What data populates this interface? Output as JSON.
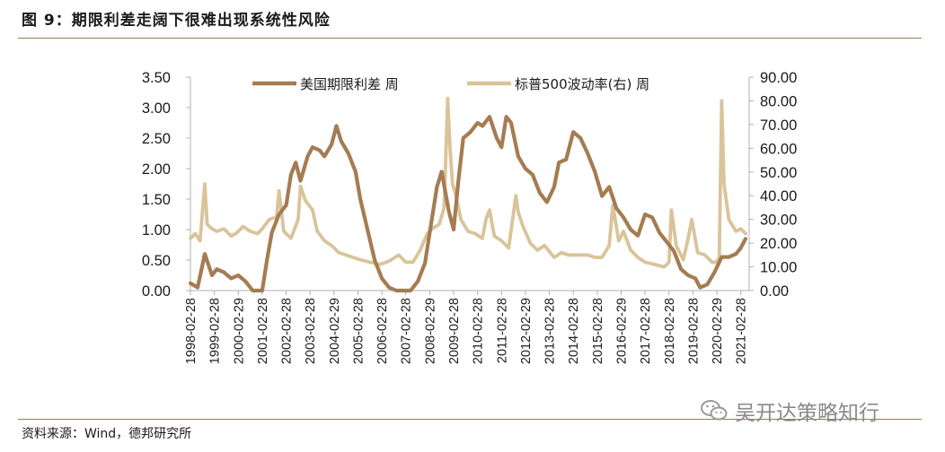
{
  "header": {
    "title": "图 9：期限利差走阔下很难出现系统性风险"
  },
  "footer": {
    "source": "资料来源：Wind，德邦研究所"
  },
  "watermark": {
    "text": "吴开达策略知行",
    "icon": "wechat-icon"
  },
  "colors": {
    "spread": "#a57c52",
    "volatility": "#d9c49a",
    "rule": "#9a7a55"
  },
  "chart_data": {
    "type": "line",
    "title": "",
    "legend_position": "top",
    "grid": false,
    "x_ticks": [
      "1998-02-28",
      "1999-02-28",
      "2000-02-29",
      "2001-02-28",
      "2002-02-28",
      "2003-02-28",
      "2004-02-29",
      "2005-02-28",
      "2006-02-28",
      "2007-02-28",
      "2008-02-29",
      "2009-02-28",
      "2010-02-28",
      "2011-02-28",
      "2012-02-29",
      "2013-02-28",
      "2014-02-28",
      "2015-02-28",
      "2016-02-29",
      "2017-02-28",
      "2018-02-28",
      "2019-02-28",
      "2020-02-29",
      "2021-02-28"
    ],
    "y_left": {
      "ticks": [
        "0.00",
        "0.50",
        "1.00",
        "1.50",
        "2.00",
        "2.50",
        "3.00",
        "3.50"
      ],
      "ylim": [
        0,
        3.5
      ]
    },
    "y_right": {
      "ticks": [
        "0.00",
        "10.00",
        "20.00",
        "30.00",
        "40.00",
        "50.00",
        "60.00",
        "70.00",
        "80.00",
        "90.00"
      ],
      "ylim": [
        0,
        90
      ]
    },
    "series": [
      {
        "name": "美国期限利差 周",
        "axis": "left",
        "x": [
          1998.0,
          1998.3,
          1998.6,
          1998.9,
          1999.1,
          1999.4,
          1999.7,
          2000.0,
          2000.3,
          2000.6,
          2000.9,
          2001.0,
          2001.2,
          2001.4,
          2001.7,
          2002.0,
          2002.2,
          2002.4,
          2002.6,
          2002.9,
          2003.1,
          2003.4,
          2003.6,
          2003.9,
          2004.1,
          2004.3,
          2004.6,
          2004.9,
          2005.1,
          2005.4,
          2005.7,
          2006.0,
          2006.3,
          2006.6,
          2006.9,
          2007.2,
          2007.5,
          2007.8,
          2008.0,
          2008.3,
          2008.5,
          2008.8,
          2009.0,
          2009.2,
          2009.4,
          2009.7,
          2010.0,
          2010.2,
          2010.5,
          2010.8,
          2011.0,
          2011.2,
          2011.4,
          2011.7,
          2012.0,
          2012.3,
          2012.6,
          2012.9,
          2013.2,
          2013.4,
          2013.7,
          2014.0,
          2014.3,
          2014.6,
          2014.9,
          2015.2,
          2015.5,
          2015.8,
          2016.1,
          2016.4,
          2016.7,
          2017.0,
          2017.3,
          2017.6,
          2017.9,
          2018.2,
          2018.5,
          2018.8,
          2019.1,
          2019.3,
          2019.6,
          2019.9,
          2020.2,
          2020.5,
          2020.8,
          2021.0,
          2021.2
        ],
        "values": [
          0.12,
          0.05,
          0.6,
          0.25,
          0.35,
          0.3,
          0.2,
          0.25,
          0.15,
          0.0,
          0.0,
          0.0,
          0.5,
          0.95,
          1.25,
          1.4,
          1.9,
          2.1,
          1.8,
          2.2,
          2.35,
          2.3,
          2.2,
          2.4,
          2.7,
          2.45,
          2.25,
          1.95,
          1.5,
          1.0,
          0.5,
          0.2,
          0.05,
          0.0,
          0.0,
          0.0,
          0.15,
          0.45,
          0.95,
          1.7,
          1.95,
          1.3,
          1.0,
          1.8,
          2.5,
          2.6,
          2.75,
          2.7,
          2.85,
          2.5,
          2.35,
          2.85,
          2.75,
          2.2,
          2.0,
          1.9,
          1.6,
          1.45,
          1.7,
          2.1,
          2.15,
          2.6,
          2.5,
          2.25,
          1.95,
          1.55,
          1.7,
          1.35,
          1.2,
          1.0,
          0.9,
          1.25,
          1.2,
          0.95,
          0.8,
          0.65,
          0.35,
          0.25,
          0.2,
          0.05,
          0.1,
          0.3,
          0.55,
          0.55,
          0.6,
          0.7,
          0.85
        ]
      },
      {
        "name": "标普500波动率(右) 周",
        "axis": "right",
        "x": [
          1998.0,
          1998.2,
          1998.4,
          1998.6,
          1998.7,
          1998.9,
          1999.1,
          1999.4,
          1999.7,
          1999.9,
          2000.2,
          2000.5,
          2000.8,
          2001.0,
          2001.3,
          2001.6,
          2001.7,
          2001.9,
          2002.2,
          2002.5,
          2002.6,
          2002.8,
          2003.1,
          2003.3,
          2003.6,
          2003.9,
          2004.2,
          2004.5,
          2004.8,
          2005.1,
          2005.5,
          2005.9,
          2006.2,
          2006.4,
          2006.7,
          2007.0,
          2007.3,
          2007.6,
          2007.9,
          2008.1,
          2008.4,
          2008.6,
          2008.75,
          2008.85,
          2008.95,
          2009.1,
          2009.3,
          2009.6,
          2009.9,
          2010.2,
          2010.35,
          2010.5,
          2010.7,
          2011.0,
          2011.3,
          2011.6,
          2011.7,
          2011.9,
          2012.2,
          2012.5,
          2012.8,
          2013.2,
          2013.5,
          2013.8,
          2014.2,
          2014.6,
          2014.9,
          2015.2,
          2015.5,
          2015.65,
          2015.9,
          2016.1,
          2016.4,
          2016.7,
          2017.0,
          2017.4,
          2017.8,
          2018.0,
          2018.1,
          2018.3,
          2018.6,
          2018.8,
          2018.95,
          2019.2,
          2019.5,
          2019.8,
          2020.0,
          2020.1,
          2020.2,
          2020.3,
          2020.5,
          2020.8,
          2021.0,
          2021.2
        ],
        "values": [
          22,
          24,
          21,
          45,
          28,
          26,
          25,
          26,
          23,
          24,
          27,
          25,
          24,
          26,
          30,
          31,
          42,
          25,
          22,
          30,
          44,
          38,
          34,
          25,
          21,
          19,
          16,
          15,
          14,
          13,
          12,
          11,
          12,
          13,
          15,
          12,
          12,
          17,
          24,
          26,
          28,
          35,
          81,
          60,
          45,
          40,
          30,
          25,
          24,
          22,
          30,
          34,
          23,
          21,
          18,
          40,
          33,
          27,
          20,
          17,
          19,
          14,
          16,
          15,
          15,
          15,
          14,
          14,
          19,
          36,
          21,
          25,
          17,
          14,
          12,
          11,
          10,
          12,
          34,
          19,
          13,
          22,
          30,
          16,
          15,
          12,
          12,
          14,
          80,
          45,
          30,
          25,
          26,
          24
        ]
      }
    ]
  }
}
